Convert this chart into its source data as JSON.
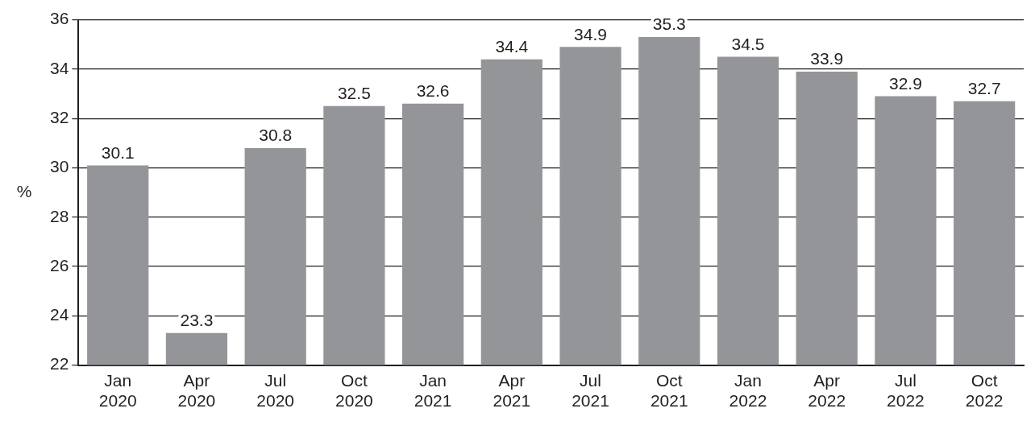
{
  "chart_data": {
    "type": "bar",
    "ylabel": "%",
    "categories": [
      "Jan 2020",
      "Apr 2020",
      "Jul 2020",
      "Oct 2020",
      "Jan 2021",
      "Apr 2021",
      "Jul 2021",
      "Oct 2021",
      "Jan 2022",
      "Apr 2022",
      "Jul 2022",
      "Oct 2022"
    ],
    "values": [
      30.1,
      23.3,
      30.8,
      32.5,
      32.6,
      34.4,
      34.9,
      35.3,
      34.5,
      33.9,
      32.9,
      32.7
    ],
    "color": "#939598",
    "ylim": [
      22,
      36
    ],
    "yticks": [
      22,
      24,
      26,
      28,
      30,
      32,
      34,
      36
    ],
    "grid": "y",
    "data_labels": true
  }
}
